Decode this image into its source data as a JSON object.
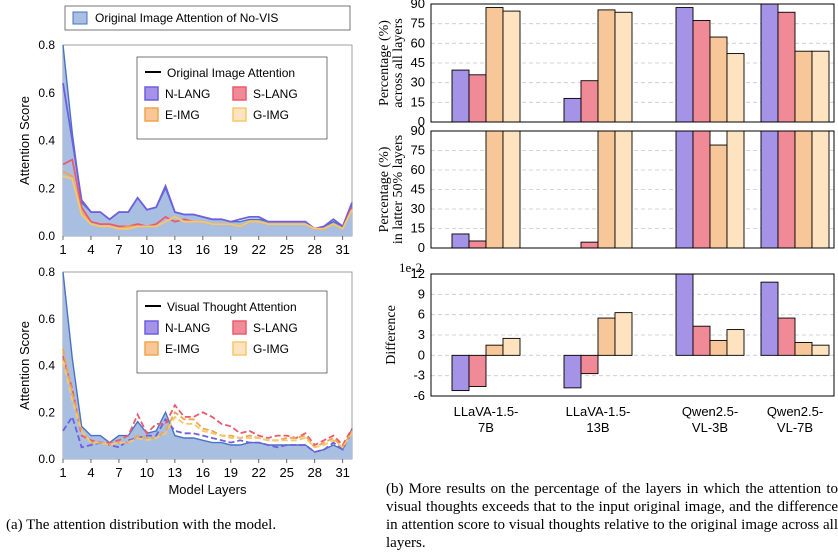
{
  "captions": {
    "a": "(a) The attention distribution with the model.",
    "b": "(b) More results on the percentage of the layers in which the attention to visual thoughts exceeds that to the input original image, and the difference in attention score to visual thoughts relative to the original image across all layers."
  },
  "colors": {
    "fill_area": "#a9bfe2",
    "area_line": "#4a72c4",
    "n_lang": "#6e5fdf",
    "s_lang": "#ea5a70",
    "e_img": "#f0a54a",
    "g_img": "#f5c86a",
    "bar_n": "#a593e8",
    "bar_s": "#f08a96",
    "bar_e": "#f7c79a",
    "bar_g": "#fde3c0",
    "grid": "#c8c8c8"
  },
  "chart_data": [
    {
      "id": "top-left",
      "type": "line",
      "ylabel": "Attention Score",
      "xlabel": "",
      "ylim": [
        0,
        0.8
      ],
      "yticks": [
        "0.0",
        "0.2",
        "0.4",
        "0.6",
        "0.8"
      ],
      "xticks": [
        "1",
        "4",
        "7",
        "10",
        "13",
        "16",
        "19",
        "22",
        "25",
        "28",
        "31"
      ],
      "legend_outer": "Original Image Attention of No-VIS",
      "legend_title": "Original Image Attention",
      "legend": [
        "N-LANG",
        "S-LANG",
        "E-IMG",
        "G-IMG"
      ],
      "area": [
        0.8,
        0.43,
        0.14,
        0.1,
        0.1,
        0.07,
        0.1,
        0.1,
        0.16,
        0.11,
        0.12,
        0.2,
        0.1,
        0.09,
        0.09,
        0.08,
        0.07,
        0.07,
        0.06,
        0.06,
        0.07,
        0.07,
        0.06,
        0.06,
        0.06,
        0.06,
        0.06,
        0.03,
        0.04,
        0.06,
        0.04,
        0.13
      ],
      "series": [
        {
          "name": "N-LANG",
          "dashed": false,
          "values": [
            0.64,
            0.4,
            0.15,
            0.1,
            0.1,
            0.07,
            0.1,
            0.1,
            0.16,
            0.11,
            0.12,
            0.21,
            0.1,
            0.09,
            0.09,
            0.08,
            0.07,
            0.07,
            0.06,
            0.07,
            0.08,
            0.08,
            0.06,
            0.06,
            0.06,
            0.06,
            0.06,
            0.03,
            0.04,
            0.07,
            0.04,
            0.14
          ]
        },
        {
          "name": "S-LANG",
          "dashed": false,
          "values": [
            0.3,
            0.32,
            0.12,
            0.06,
            0.05,
            0.05,
            0.04,
            0.04,
            0.05,
            0.04,
            0.05,
            0.08,
            0.06,
            0.07,
            0.06,
            0.06,
            0.05,
            0.05,
            0.05,
            0.04,
            0.06,
            0.06,
            0.05,
            0.05,
            0.05,
            0.05,
            0.05,
            0.03,
            0.03,
            0.05,
            0.03,
            0.12
          ]
        },
        {
          "name": "E-IMG",
          "dashed": false,
          "values": [
            0.27,
            0.25,
            0.1,
            0.05,
            0.04,
            0.04,
            0.03,
            0.04,
            0.04,
            0.04,
            0.04,
            0.06,
            0.08,
            0.06,
            0.06,
            0.06,
            0.05,
            0.05,
            0.05,
            0.04,
            0.06,
            0.06,
            0.05,
            0.05,
            0.05,
            0.05,
            0.05,
            0.03,
            0.03,
            0.05,
            0.03,
            0.11
          ]
        },
        {
          "name": "G-IMG",
          "dashed": false,
          "values": [
            0.25,
            0.24,
            0.09,
            0.05,
            0.04,
            0.04,
            0.03,
            0.03,
            0.04,
            0.04,
            0.04,
            0.06,
            0.08,
            0.06,
            0.06,
            0.06,
            0.05,
            0.05,
            0.05,
            0.04,
            0.06,
            0.06,
            0.05,
            0.05,
            0.05,
            0.05,
            0.05,
            0.03,
            0.03,
            0.05,
            0.03,
            0.11
          ]
        }
      ]
    },
    {
      "id": "bottom-left",
      "type": "line",
      "ylabel": "Attention Score",
      "xlabel": "Model Layers",
      "ylim": [
        0,
        0.8
      ],
      "yticks": [
        "0.0",
        "0.2",
        "0.4",
        "0.6",
        "0.8"
      ],
      "xticks": [
        "1",
        "4",
        "7",
        "10",
        "13",
        "16",
        "19",
        "22",
        "25",
        "28",
        "31"
      ],
      "legend_title": "Visual Thought Attention",
      "legend": [
        "N-LANG",
        "S-LANG",
        "E-IMG",
        "G-IMG"
      ],
      "area": [
        0.8,
        0.43,
        0.14,
        0.1,
        0.1,
        0.07,
        0.1,
        0.1,
        0.16,
        0.11,
        0.12,
        0.2,
        0.1,
        0.09,
        0.09,
        0.08,
        0.07,
        0.07,
        0.06,
        0.06,
        0.07,
        0.07,
        0.06,
        0.06,
        0.06,
        0.06,
        0.06,
        0.03,
        0.04,
        0.06,
        0.04,
        0.13
      ],
      "series": [
        {
          "name": "N-LANG",
          "dashed": true,
          "values": [
            0.12,
            0.18,
            0.05,
            0.06,
            0.07,
            0.06,
            0.05,
            0.08,
            0.09,
            0.1,
            0.1,
            0.17,
            0.12,
            0.11,
            0.11,
            0.1,
            0.09,
            0.08,
            0.07,
            0.08,
            0.07,
            0.07,
            0.06,
            0.05,
            0.06,
            0.06,
            0.06,
            0.03,
            0.04,
            0.07,
            0.04,
            0.12
          ]
        },
        {
          "name": "S-LANG",
          "dashed": true,
          "values": [
            0.44,
            0.3,
            0.1,
            0.08,
            0.07,
            0.07,
            0.08,
            0.1,
            0.19,
            0.11,
            0.15,
            0.15,
            0.23,
            0.18,
            0.18,
            0.2,
            0.18,
            0.15,
            0.14,
            0.11,
            0.12,
            0.1,
            0.09,
            0.1,
            0.1,
            0.09,
            0.11,
            0.06,
            0.08,
            0.1,
            0.06,
            0.13
          ]
        },
        {
          "name": "E-IMG",
          "dashed": true,
          "values": [
            0.47,
            0.28,
            0.12,
            0.07,
            0.07,
            0.06,
            0.07,
            0.07,
            0.1,
            0.09,
            0.09,
            0.12,
            0.2,
            0.17,
            0.17,
            0.13,
            0.12,
            0.1,
            0.1,
            0.09,
            0.1,
            0.09,
            0.08,
            0.08,
            0.09,
            0.09,
            0.1,
            0.05,
            0.07,
            0.09,
            0.05,
            0.12
          ]
        },
        {
          "name": "G-IMG",
          "dashed": true,
          "values": [
            0.42,
            0.25,
            0.12,
            0.07,
            0.07,
            0.06,
            0.07,
            0.07,
            0.09,
            0.08,
            0.09,
            0.11,
            0.18,
            0.15,
            0.15,
            0.12,
            0.11,
            0.1,
            0.09,
            0.09,
            0.09,
            0.09,
            0.08,
            0.08,
            0.08,
            0.08,
            0.09,
            0.05,
            0.06,
            0.08,
            0.05,
            0.11
          ]
        }
      ]
    },
    {
      "id": "right-top",
      "type": "bar",
      "ylabel": [
        "Percentage (%)",
        "across all layers"
      ],
      "ylim": [
        0,
        100
      ],
      "yticks": [
        "0",
        "15",
        "30",
        "45",
        "60",
        "75",
        "90"
      ],
      "series": [
        {
          "name": "N-LANG",
          "values": [
            44,
            20,
            97,
            100
          ]
        },
        {
          "name": "S-LANG",
          "values": [
            40,
            35,
            86,
            93
          ]
        },
        {
          "name": "E-IMG",
          "values": [
            97,
            95,
            72,
            60
          ]
        },
        {
          "name": "G-IMG",
          "values": [
            94,
            93,
            58,
            60
          ]
        }
      ]
    },
    {
      "id": "right-middle",
      "type": "bar",
      "ylabel": [
        "Percentage (%)",
        "in latter 50% layers"
      ],
      "ylim": [
        0,
        100
      ],
      "yticks": [
        "0",
        "15",
        "30",
        "45",
        "60",
        "75",
        "90"
      ],
      "series": [
        {
          "name": "N-LANG",
          "values": [
            12,
            0,
            100,
            100
          ]
        },
        {
          "name": "S-LANG",
          "values": [
            6,
            5,
            100,
            100
          ]
        },
        {
          "name": "E-IMG",
          "values": [
            100,
            100,
            88,
            100
          ]
        },
        {
          "name": "G-IMG",
          "values": [
            100,
            100,
            100,
            100
          ]
        }
      ]
    },
    {
      "id": "right-bottom",
      "type": "bar",
      "ylabel": [
        "Difference"
      ],
      "scale_note": "1e-2",
      "ylim": [
        -6,
        12
      ],
      "yticks": [
        "-6",
        "-3",
        "0",
        "3",
        "6",
        "9",
        "12"
      ],
      "categories": [
        [
          "LLaVA-1.5-",
          "7B"
        ],
        [
          "LLaVA-1.5-",
          "13B"
        ],
        [
          "Qwen2.5-",
          "VL-3B"
        ],
        [
          "Qwen2.5-",
          "VL-7B"
        ]
      ],
      "series": [
        {
          "name": "N-LANG",
          "values": [
            -5.2,
            -4.8,
            12.5,
            10.8
          ]
        },
        {
          "name": "S-LANG",
          "values": [
            -4.6,
            -2.7,
            4.3,
            5.5
          ]
        },
        {
          "name": "E-IMG",
          "values": [
            1.5,
            5.5,
            2.2,
            1.9
          ]
        },
        {
          "name": "G-IMG",
          "values": [
            2.5,
            6.3,
            3.8,
            1.5
          ]
        }
      ]
    }
  ]
}
